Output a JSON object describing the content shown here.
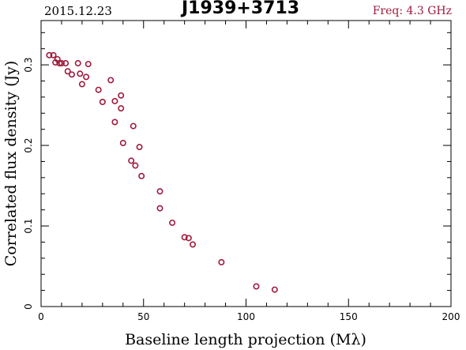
{
  "header": {
    "date": "2015.12.23",
    "source": "J1939+3713",
    "freq": "Freq: 4.3 GHz"
  },
  "colors": {
    "marker": "#a01a3c",
    "axes": "#000000"
  },
  "chart_data": {
    "type": "scatter",
    "title": "J1939+3713",
    "xlabel": "Baseline length projection (Mλ)",
    "ylabel": "Correlated flux density (Jy)",
    "xlim": [
      0,
      200
    ],
    "ylim": [
      0,
      0.355
    ],
    "xticks": [
      0,
      50,
      100,
      150,
      200
    ],
    "yticks": [
      0,
      0.1,
      0.2,
      0.3
    ],
    "ytick_labels": [
      "0",
      "0.1",
      "0.2",
      "0.3"
    ],
    "grid": false,
    "series": [
      {
        "marker": "open-circle",
        "points": [
          [
            4,
            0.312
          ],
          [
            6,
            0.312
          ],
          [
            7,
            0.303
          ],
          [
            8,
            0.307
          ],
          [
            9,
            0.302
          ],
          [
            10,
            0.302
          ],
          [
            12,
            0.302
          ],
          [
            13,
            0.292
          ],
          [
            15,
            0.288
          ],
          [
            18,
            0.302
          ],
          [
            19,
            0.289
          ],
          [
            20,
            0.276
          ],
          [
            22,
            0.285
          ],
          [
            23,
            0.301
          ],
          [
            28,
            0.269
          ],
          [
            30,
            0.254
          ],
          [
            34,
            0.281
          ],
          [
            36,
            0.229
          ],
          [
            36,
            0.255
          ],
          [
            39,
            0.262
          ],
          [
            39,
            0.246
          ],
          [
            40,
            0.203
          ],
          [
            44,
            0.181
          ],
          [
            45,
            0.224
          ],
          [
            46,
            0.175
          ],
          [
            48,
            0.198
          ],
          [
            49,
            0.162
          ],
          [
            58,
            0.143
          ],
          [
            58,
            0.122
          ],
          [
            64,
            0.104
          ],
          [
            70,
            0.086
          ],
          [
            72,
            0.085
          ],
          [
            74,
            0.077
          ],
          [
            88,
            0.055
          ],
          [
            105,
            0.025
          ],
          [
            114,
            0.021
          ]
        ]
      }
    ]
  }
}
